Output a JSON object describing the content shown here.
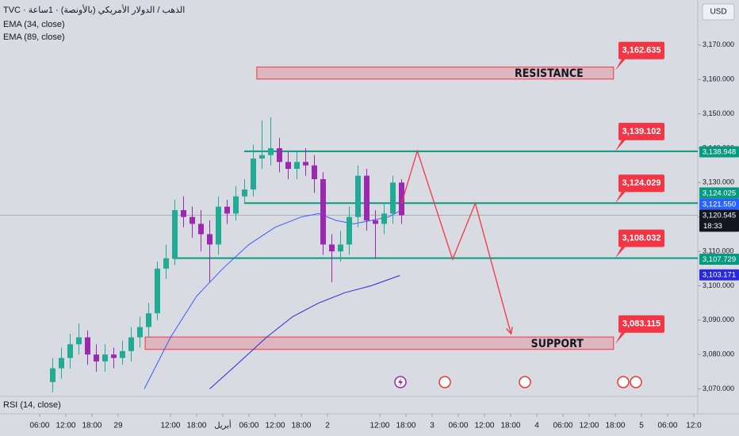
{
  "chart_data": {
    "type": "candlestick",
    "title": "TVC · الذهب / الدولار الأمريكي (بالأونصة) · 1ساعة",
    "currency": "USD",
    "pane_label": "RSI (14, close)",
    "up_color": "#22ab94",
    "down_color": "#9c27b0",
    "x": [
      9,
      11,
      13,
      15,
      17,
      19,
      21,
      23,
      25,
      27,
      29,
      31,
      33,
      35,
      37,
      39,
      41,
      43,
      45,
      47,
      49,
      51,
      53,
      55,
      57,
      59,
      61,
      63,
      65,
      67,
      69,
      71,
      73,
      75,
      77,
      79,
      81,
      83,
      85,
      87,
      89
    ],
    "open": [
      3072,
      3076,
      3079,
      3083,
      3085,
      3080,
      3078,
      3080,
      3079,
      3081,
      3085,
      3088,
      3092,
      3105,
      3108,
      3122,
      3120,
      3118,
      3115,
      3112,
      3123,
      3121,
      3126,
      3128,
      3137,
      3138,
      3140,
      3136,
      3134,
      3136,
      3135,
      3131,
      3112,
      3110,
      3112,
      3120,
      3132,
      3119,
      3118,
      3121,
      3130
    ],
    "high": [
      3079,
      3082,
      3086,
      3089,
      3087,
      3083,
      3083,
      3082,
      3084,
      3088,
      3091,
      3095,
      3107,
      3112,
      3125,
      3126,
      3123,
      3122,
      3119,
      3126,
      3125,
      3129,
      3131,
      3141,
      3148,
      3149,
      3143,
      3139,
      3139,
      3140,
      3138,
      3133,
      3115,
      3116,
      3123,
      3135,
      3134,
      3122,
      3124,
      3132,
      3131
    ],
    "low": [
      3069,
      3073,
      3076,
      3080,
      3077,
      3075,
      3075,
      3076,
      3077,
      3078,
      3082,
      3085,
      3090,
      3102,
      3106,
      3117,
      3114,
      3110,
      3101,
      3109,
      3118,
      3119,
      3124,
      3126,
      3134,
      3135,
      3133,
      3131,
      3131,
      3132,
      3127,
      3109,
      3101,
      3107,
      3109,
      3117,
      3116,
      3108,
      3115,
      3118,
      3118
    ],
    "close": [
      3076,
      3079,
      3083,
      3085,
      3080,
      3078,
      3080,
      3079,
      3081,
      3085,
      3088,
      3092,
      3105,
      3108,
      3122,
      3120,
      3118,
      3115,
      3112,
      3123,
      3121,
      3126,
      3128,
      3137,
      3138,
      3140,
      3136,
      3134,
      3136,
      3135,
      3131,
      3112,
      3110,
      3112,
      3120,
      3132,
      3119,
      3118,
      3121,
      3130,
      3120.5
    ],
    "series": [
      {
        "name": "EMA (34, close)",
        "color": "#3d5afe",
        "x": [
          30,
          36,
          42,
          48,
          54,
          60,
          66,
          70,
          74,
          78,
          82,
          86,
          89
        ],
        "values": [
          3070,
          3085,
          3097,
          3105,
          3112,
          3117,
          3120,
          3121,
          3119,
          3118,
          3119,
          3120,
          3122
        ]
      },
      {
        "name": "EMA (89, close)",
        "color": "#2a2ad8",
        "x": [
          45,
          52,
          58,
          64,
          70,
          76,
          82,
          88.6
        ],
        "values": [
          3070,
          3078,
          3085,
          3091,
          3095,
          3098,
          3100,
          3103
        ]
      }
    ],
    "levels": [
      {
        "value": 3139.102,
        "label": "3,139.102",
        "x_start": 52.9
      },
      {
        "value": 3124.029,
        "label": "3,124.029",
        "x_start": 52.9
      },
      {
        "value": 3108.032,
        "label": "3,108.032",
        "x_start": 36.5
      }
    ],
    "level_color": "#089981",
    "zones": [
      {
        "label": "RESISTANCE",
        "value": 3162.635,
        "value_label": "3,162.635",
        "x": [
          55.8,
          137.6
        ],
        "y": [
          3160.1,
          3163.6
        ]
      },
      {
        "label": "SUPPORT",
        "value": 3083.115,
        "value_label": "3,083.115",
        "x": [
          30.2,
          137.6
        ],
        "y": [
          3081.5,
          3085.1
        ]
      }
    ],
    "projection": {
      "color": "#f23645",
      "x": [
        89,
        92.6,
        100.7,
        105.9,
        114.1
      ],
      "values": [
        3124,
        3139.2,
        3107.7,
        3124,
        3086
      ]
    },
    "price_tags": [
      {
        "value": 3138.948,
        "label": "3,138.948",
        "color": "#089981"
      },
      {
        "value": 3124.025,
        "label": "3,124.025",
        "color": "#089981"
      },
      {
        "value": 3121.55,
        "label": "3,121.550",
        "color": "#2962ff"
      },
      {
        "value": 3120.545,
        "label": "3,120.545",
        "color": "#131722",
        "countdown": "18:33"
      },
      {
        "value": 3107.729,
        "label": "3,107.729",
        "color": "#089981"
      },
      {
        "value": 3103.171,
        "label": "3,103.171",
        "color": "#2a2ad8"
      }
    ],
    "xlim": [
      -3.09,
      156.91
    ],
    "xticks": [
      {
        "value": 6,
        "label": "06:00"
      },
      {
        "value": 12,
        "label": "12:00"
      },
      {
        "value": 18,
        "label": "18:00"
      },
      {
        "value": 24,
        "label": "29"
      },
      {
        "value": 36,
        "label": "12:00"
      },
      {
        "value": 42,
        "label": "18:00"
      },
      {
        "value": 48,
        "label": "أبريل"
      },
      {
        "value": 54,
        "label": "06:00"
      },
      {
        "value": 60,
        "label": "12:00"
      },
      {
        "value": 66,
        "label": "18:00"
      },
      {
        "value": 72,
        "label": "2"
      },
      {
        "value": 84,
        "label": "12:00"
      },
      {
        "value": 90,
        "label": "18:00"
      },
      {
        "value": 96,
        "label": "3"
      },
      {
        "value": 102,
        "label": "06:00"
      },
      {
        "value": 108,
        "label": "12:00"
      },
      {
        "value": 114,
        "label": "18:00"
      },
      {
        "value": 120,
        "label": "4"
      },
      {
        "value": 126,
        "label": "06:00"
      },
      {
        "value": 132,
        "label": "12:00"
      },
      {
        "value": 138,
        "label": "18:00"
      },
      {
        "value": 144,
        "label": "5"
      },
      {
        "value": 150,
        "label": "06:00"
      },
      {
        "value": 156,
        "label": "12:0"
      }
    ],
    "ylim": [
      3068.3,
      3183.1
    ],
    "yticks": [
      {
        "value": 3070,
        "label": "3,070.000"
      },
      {
        "value": 3080,
        "label": "3,080.000"
      },
      {
        "value": 3090,
        "label": "3,090.000"
      },
      {
        "value": 3100,
        "label": "3,100.000"
      },
      {
        "value": 3110,
        "label": "3,110.000"
      },
      {
        "value": 3120,
        "label": "3,120.000"
      },
      {
        "value": 3130,
        "label": "3,130.000"
      },
      {
        "value": 3140,
        "label": "3,140.000"
      },
      {
        "value": 3150,
        "label": "3,150.000"
      },
      {
        "value": 3160,
        "label": "3,160.000"
      },
      {
        "value": 3170,
        "label": "3,170.000"
      }
    ]
  }
}
